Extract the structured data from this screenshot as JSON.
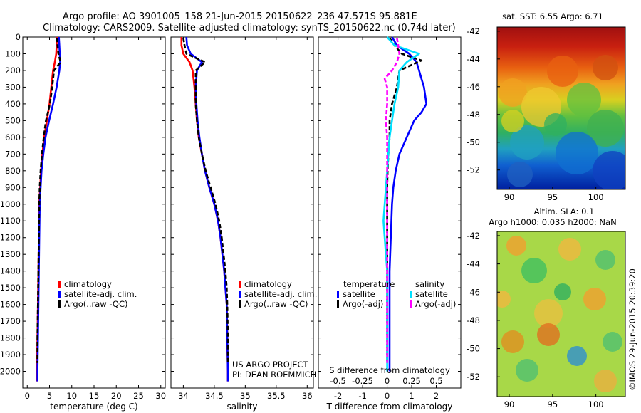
{
  "header": {
    "line1": "Argo profile: AO 3901005_158 21-Jun-2015 20150622_236 47.571S 95.881E",
    "line2": "Climatology: CARS2009. Satellite-adjusted climatology: synTS_20150622.nc (0.74d later)"
  },
  "credits": {
    "line1": "US ARGO PROJECT",
    "line2": "PI: DEAN ROEMMICH"
  },
  "stamp": "©IMOS 29-Jun-2015 20:39:20",
  "colors": {
    "climatology": "#ff0000",
    "satellite": "#0000ff",
    "argo": "#000000",
    "sal_satellite": "#00e0ff",
    "sal_argo": "#ff00ff"
  },
  "chart_data": [
    {
      "type": "line",
      "panel": "temperature",
      "xlabel": "temperature (deg C)",
      "ylabel": "",
      "xlim": [
        -1,
        31
      ],
      "ylim": [
        2100,
        0
      ],
      "xticks": [
        0,
        5,
        10,
        15,
        20,
        25,
        30
      ],
      "yticks": [
        0,
        100,
        200,
        300,
        400,
        500,
        600,
        700,
        800,
        900,
        1000,
        1100,
        1200,
        1300,
        1400,
        1500,
        1600,
        1700,
        1800,
        1900,
        2000
      ],
      "legend": [
        "climatology",
        "satellite-adj. clim.",
        "Argo(..raw -QC)"
      ],
      "series": [
        {
          "name": "climatology",
          "color": "#ff0000",
          "dash": "",
          "points": [
            [
              6.6,
              0
            ],
            [
              6.6,
              50
            ],
            [
              6.5,
              100
            ],
            [
              6.2,
              150
            ],
            [
              5.8,
              200
            ],
            [
              5.4,
              300
            ],
            [
              5.0,
              400
            ],
            [
              4.4,
              500
            ],
            [
              3.8,
              600
            ],
            [
              3.4,
              700
            ],
            [
              3.1,
              800
            ],
            [
              2.9,
              900
            ],
            [
              2.7,
              1000
            ],
            [
              2.6,
              1200
            ],
            [
              2.5,
              1400
            ],
            [
              2.4,
              1600
            ],
            [
              2.3,
              1800
            ],
            [
              2.2,
              2000
            ],
            [
              2.2,
              2060
            ]
          ]
        },
        {
          "name": "satellite-adj. clim.",
          "color": "#0000ff",
          "dash": "",
          "points": [
            [
              7.1,
              0
            ],
            [
              7.2,
              50
            ],
            [
              7.3,
              100
            ],
            [
              7.4,
              150
            ],
            [
              7.2,
              200
            ],
            [
              6.6,
              300
            ],
            [
              5.8,
              400
            ],
            [
              4.9,
              500
            ],
            [
              4.1,
              600
            ],
            [
              3.6,
              700
            ],
            [
              3.2,
              800
            ],
            [
              3.0,
              900
            ],
            [
              2.8,
              1000
            ],
            [
              2.7,
              1200
            ],
            [
              2.6,
              1400
            ],
            [
              2.5,
              1600
            ],
            [
              2.4,
              1800
            ],
            [
              2.3,
              2000
            ],
            [
              2.3,
              2060
            ]
          ]
        },
        {
          "name": "Argo(..raw -QC)",
          "color": "#000000",
          "dash": "6,3",
          "points": [
            [
              6.7,
              5
            ],
            [
              6.8,
              50
            ],
            [
              7.0,
              100
            ],
            [
              7.5,
              150
            ],
            [
              6.0,
              200
            ],
            [
              5.6,
              300
            ],
            [
              5.1,
              400
            ],
            [
              4.2,
              500
            ],
            [
              3.7,
              600
            ],
            [
              3.3,
              700
            ],
            [
              3.0,
              800
            ],
            [
              2.8,
              900
            ],
            [
              2.7,
              1000
            ],
            [
              2.6,
              1200
            ],
            [
              2.5,
              1400
            ],
            [
              2.4,
              1600
            ],
            [
              2.3,
              1800
            ],
            [
              2.3,
              1950
            ]
          ]
        }
      ]
    },
    {
      "type": "line",
      "panel": "salinity",
      "xlabel": "salinity",
      "ylabel": "",
      "xlim": [
        33.8,
        36.1
      ],
      "ylim": [
        2100,
        0
      ],
      "xticks": [
        34,
        34.5,
        35,
        35.5,
        36
      ],
      "yticks": [],
      "legend": [
        "climatology",
        "satellite-adj. clim.",
        "Argo(..raw -QC)"
      ],
      "series": [
        {
          "name": "climatology",
          "color": "#ff0000",
          "dash": "",
          "points": [
            [
              33.97,
              0
            ],
            [
              33.97,
              50
            ],
            [
              34.0,
              100
            ],
            [
              34.1,
              150
            ],
            [
              34.15,
              200
            ],
            [
              34.18,
              300
            ],
            [
              34.2,
              400
            ],
            [
              34.22,
              500
            ],
            [
              34.25,
              600
            ],
            [
              34.3,
              700
            ],
            [
              34.35,
              800
            ],
            [
              34.42,
              900
            ],
            [
              34.5,
              1000
            ],
            [
              34.56,
              1100
            ],
            [
              34.6,
              1200
            ],
            [
              34.63,
              1300
            ],
            [
              34.66,
              1400
            ],
            [
              34.68,
              1500
            ],
            [
              34.7,
              1600
            ],
            [
              34.71,
              1800
            ],
            [
              34.72,
              2000
            ],
            [
              34.72,
              2060
            ]
          ]
        },
        {
          "name": "satellite-adj. clim.",
          "color": "#0000ff",
          "dash": "",
          "points": [
            [
              34.05,
              0
            ],
            [
              34.06,
              50
            ],
            [
              34.12,
              100
            ],
            [
              34.3,
              150
            ],
            [
              34.22,
              200
            ],
            [
              34.2,
              300
            ],
            [
              34.21,
              400
            ],
            [
              34.23,
              500
            ],
            [
              34.26,
              600
            ],
            [
              34.3,
              700
            ],
            [
              34.35,
              800
            ],
            [
              34.42,
              900
            ],
            [
              34.5,
              1000
            ],
            [
              34.56,
              1100
            ],
            [
              34.6,
              1200
            ],
            [
              34.63,
              1300
            ],
            [
              34.66,
              1400
            ],
            [
              34.68,
              1500
            ],
            [
              34.7,
              1600
            ],
            [
              34.71,
              1800
            ],
            [
              34.72,
              2000
            ],
            [
              34.72,
              2060
            ]
          ]
        },
        {
          "name": "Argo(..raw -QC)",
          "color": "#000000",
          "dash": "6,3",
          "points": [
            [
              34.0,
              5
            ],
            [
              34.02,
              50
            ],
            [
              34.05,
              100
            ],
            [
              34.35,
              150
            ],
            [
              34.2,
              200
            ],
            [
              34.2,
              300
            ],
            [
              34.2,
              400
            ],
            [
              34.22,
              500
            ],
            [
              34.25,
              600
            ],
            [
              34.3,
              700
            ],
            [
              34.36,
              800
            ],
            [
              34.44,
              900
            ],
            [
              34.52,
              1000
            ],
            [
              34.58,
              1100
            ],
            [
              34.62,
              1200
            ],
            [
              34.65,
              1300
            ],
            [
              34.68,
              1400
            ],
            [
              34.7,
              1500
            ],
            [
              34.71,
              1600
            ],
            [
              34.72,
              1800
            ],
            [
              34.72,
              1950
            ]
          ]
        }
      ]
    },
    {
      "type": "line",
      "panel": "difference",
      "xlabel": "T difference from climatology",
      "ylabel": "",
      "title_bottom": "S difference from climatology",
      "xlim": [
        -2.8,
        3.0
      ],
      "ylim": [
        2100,
        0
      ],
      "xticks": [
        -2,
        -1,
        0,
        1,
        2
      ],
      "sticks": [
        "-0.5",
        "-0.25",
        "0",
        "0.25",
        "0.5"
      ],
      "yticks": [],
      "legend_headers": [
        "temperature",
        "salinity"
      ],
      "legend": [
        "satellite",
        "Argo(-adj)",
        "satellite",
        "Argo(-adj)"
      ],
      "series": [
        {
          "name": "temperature satellite",
          "color": "#0000ff",
          "dash": "",
          "points": [
            [
              0.2,
              0
            ],
            [
              0.4,
              50
            ],
            [
              0.9,
              100
            ],
            [
              1.2,
              150
            ],
            [
              1.3,
              200
            ],
            [
              1.4,
              250
            ],
            [
              1.5,
              300
            ],
            [
              1.6,
              400
            ],
            [
              1.4,
              450
            ],
            [
              1.1,
              500
            ],
            [
              0.8,
              600
            ],
            [
              0.5,
              700
            ],
            [
              0.35,
              800
            ],
            [
              0.25,
              900
            ],
            [
              0.2,
              1000
            ],
            [
              0.15,
              1200
            ],
            [
              0.1,
              1400
            ],
            [
              0.1,
              1600
            ],
            [
              0.1,
              1800
            ],
            [
              0.1,
              2000
            ]
          ]
        },
        {
          "name": "temperature Argo(-adj)",
          "color": "#000000",
          "dash": "6,3",
          "points": [
            [
              0.1,
              5
            ],
            [
              0.3,
              50
            ],
            [
              0.6,
              100
            ],
            [
              1.4,
              140
            ],
            [
              0.5,
              200
            ],
            [
              0.4,
              300
            ],
            [
              0.2,
              400
            ],
            [
              0.1,
              500
            ],
            [
              0.1,
              600
            ],
            [
              0.05,
              700
            ],
            [
              0.02,
              800
            ],
            [
              0.0,
              900
            ],
            [
              0.0,
              1000
            ],
            [
              0.0,
              1200
            ],
            [
              0.0,
              1400
            ],
            [
              0.0,
              1600
            ],
            [
              0.0,
              1800
            ],
            [
              0.0,
              1950
            ]
          ]
        },
        {
          "name": "salinity satellite",
          "color": "#00e0ff",
          "dash": "",
          "points": [
            [
              0.0,
              0
            ],
            [
              0.3,
              50
            ],
            [
              1.3,
              100
            ],
            [
              0.8,
              150
            ],
            [
              0.5,
              200
            ],
            [
              0.45,
              300
            ],
            [
              0.3,
              400
            ],
            [
              0.2,
              500
            ],
            [
              0.1,
              600
            ],
            [
              0.05,
              700
            ],
            [
              0.0,
              800
            ],
            [
              -0.05,
              900
            ],
            [
              -0.1,
              1000
            ],
            [
              -0.15,
              1100
            ],
            [
              -0.1,
              1200
            ],
            [
              -0.05,
              1300
            ],
            [
              0.0,
              1400
            ],
            [
              0.0,
              1600
            ],
            [
              0.0,
              1800
            ],
            [
              0.0,
              2000
            ]
          ]
        },
        {
          "name": "salinity Argo(-adj)",
          "color": "#ff00ff",
          "dash": "6,3",
          "points": [
            [
              0.4,
              5
            ],
            [
              0.45,
              50
            ],
            [
              0.5,
              100
            ],
            [
              0.4,
              150
            ],
            [
              0.2,
              200
            ],
            [
              -0.1,
              250
            ],
            [
              0.0,
              300
            ],
            [
              0.0,
              400
            ],
            [
              -0.05,
              500
            ],
            [
              0.0,
              600
            ],
            [
              0.0,
              700
            ],
            [
              0.0,
              800
            ],
            [
              0.0,
              1000
            ],
            [
              0.0,
              1200
            ],
            [
              0.0,
              1400
            ],
            [
              0.0,
              1600
            ],
            [
              0.0,
              1800
            ],
            [
              0.0,
              1950
            ]
          ]
        }
      ]
    },
    {
      "type": "heatmap",
      "panel": "sst",
      "title": "sat. SST: 6.55 Argo: 6.71",
      "xticks": [
        90,
        95,
        100
      ],
      "yticks": [
        -42,
        -44,
        -46,
        -48,
        -50,
        -52
      ],
      "xlim": [
        88.6,
        103.4
      ],
      "ylim": [
        -41.7,
        -53.4
      ]
    },
    {
      "type": "heatmap",
      "panel": "sla",
      "title": "Altim. SLA: 0.1",
      "title2": "Argo h1000: 0.035 h2000: NaN",
      "xticks": [
        90,
        95,
        100
      ],
      "yticks": [
        -42,
        -44,
        -46,
        -48,
        -50,
        -52
      ],
      "xlim": [
        88.6,
        103.4
      ],
      "ylim": [
        -41.7,
        -53.4
      ]
    }
  ]
}
